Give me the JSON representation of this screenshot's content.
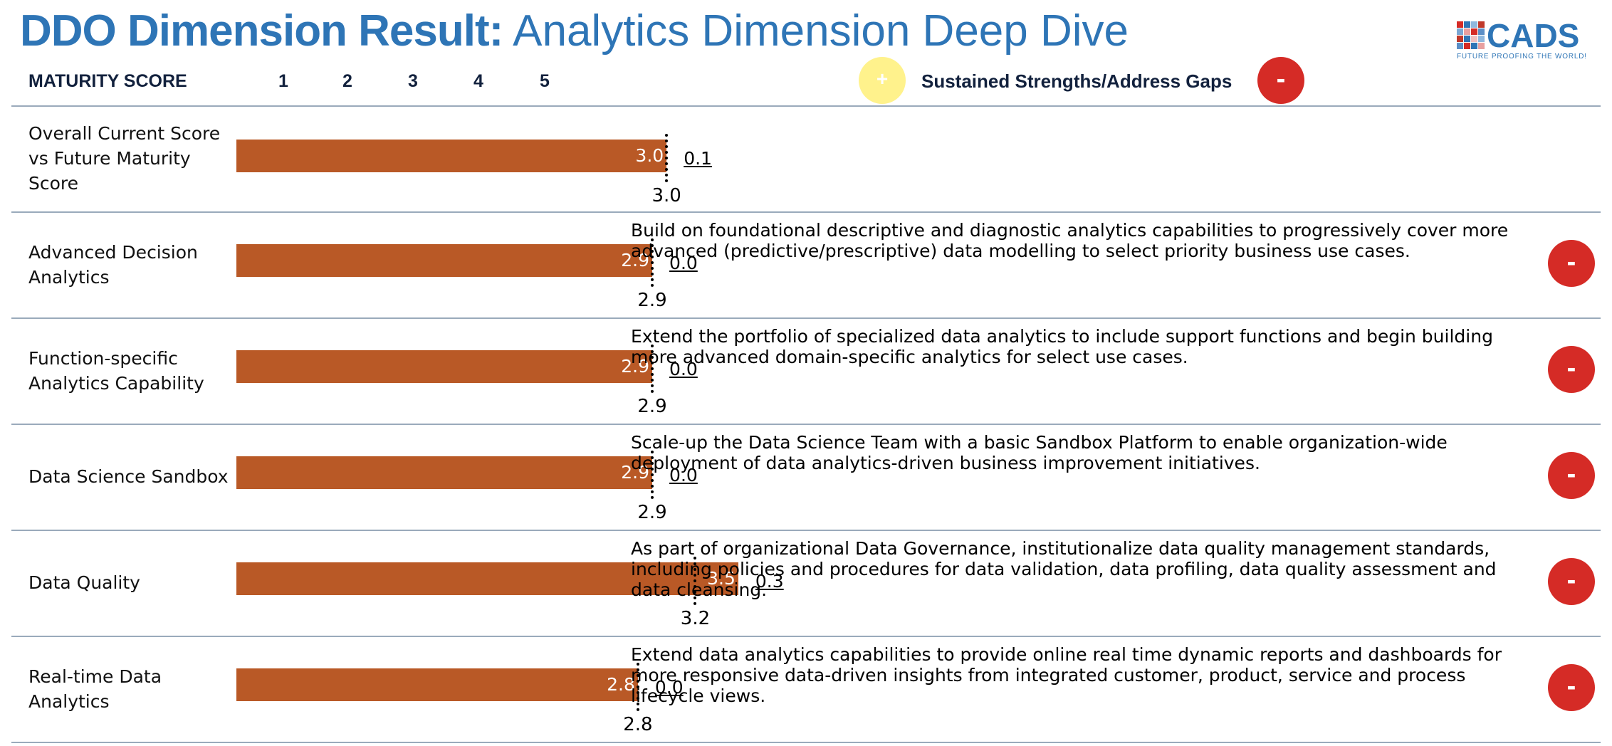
{
  "header": {
    "title_bold": "DDO Dimension Result:",
    "title_light": "Analytics Dimension Deep Dive",
    "logo_text": "CADS",
    "logo_tagline": "FUTURE PROOFING THE WORLD!"
  },
  "scale_header": {
    "label": "MATURITY SCORE",
    "ticks": [
      "1",
      "2",
      "3",
      "4",
      "5"
    ]
  },
  "legend": {
    "plus_symbol": "+",
    "label": "Sustained Strengths/Address Gaps",
    "minus_symbol": "-"
  },
  "colors": {
    "title": "#2e75b6",
    "bar": "#b95926",
    "strength": "#fff28c",
    "gap": "#d52b26"
  },
  "chart_data": {
    "type": "bar",
    "orientation": "horizontal",
    "xlim": [
      0,
      5
    ],
    "rows": [
      {
        "label": "Overall Current Score vs Future Maturity Score",
        "current": 3.0,
        "current_label": "3.0",
        "future": 3.0,
        "future_label": "3.0",
        "gap": 0.1,
        "gap_label": "0.1",
        "recommendation": "",
        "status": ""
      },
      {
        "label": "Advanced Decision Analytics",
        "current": 2.9,
        "current_label": "2.9",
        "future": 2.9,
        "future_label": "2.9",
        "gap": 0.0,
        "gap_label": "0.0",
        "recommendation": "Build on foundational descriptive and diagnostic analytics capabilities to progressively cover more advanced (predictive/prescriptive) data modelling to select priority business use cases.",
        "status": "-"
      },
      {
        "label": "Function-specific Analytics Capability",
        "current": 2.9,
        "current_label": "2.9",
        "future": 2.9,
        "future_label": "2.9",
        "gap": 0.0,
        "gap_label": "0.0",
        "recommendation": "Extend the portfolio of specialized data analytics to include support functions and begin building more advanced domain-specific analytics for select use cases.",
        "status": "-"
      },
      {
        "label": "Data Science Sandbox",
        "current": 2.9,
        "current_label": "2.9",
        "future": 2.9,
        "future_label": "2.9",
        "gap": 0.0,
        "gap_label": "0.0",
        "recommendation": "Scale-up the Data Science Team with a basic Sandbox Platform to enable organization-wide deployment of data analytics-driven business improvement initiatives.",
        "status": "-"
      },
      {
        "label": "Data Quality",
        "current": 3.5,
        "current_label": "3.5",
        "future": 3.2,
        "future_label": "3.2",
        "gap": 0.3,
        "gap_label": "0.3",
        "recommendation": "As part of organizational Data Governance, institutionalize data quality management standards, including policies and procedures for data validation, data profiling, data quality assessment and data cleansing.",
        "status": "-"
      },
      {
        "label": "Real-time Data Analytics",
        "current": 2.8,
        "current_label": "2.8",
        "future": 2.8,
        "future_label": "2.8",
        "gap": 0.0,
        "gap_label": "0.0",
        "recommendation": "Extend data analytics capabilities to provide online real time dynamic reports and dashboards for more responsive data-driven insights from integrated customer, product, service and process lifecycle views.",
        "status": "-"
      }
    ]
  }
}
